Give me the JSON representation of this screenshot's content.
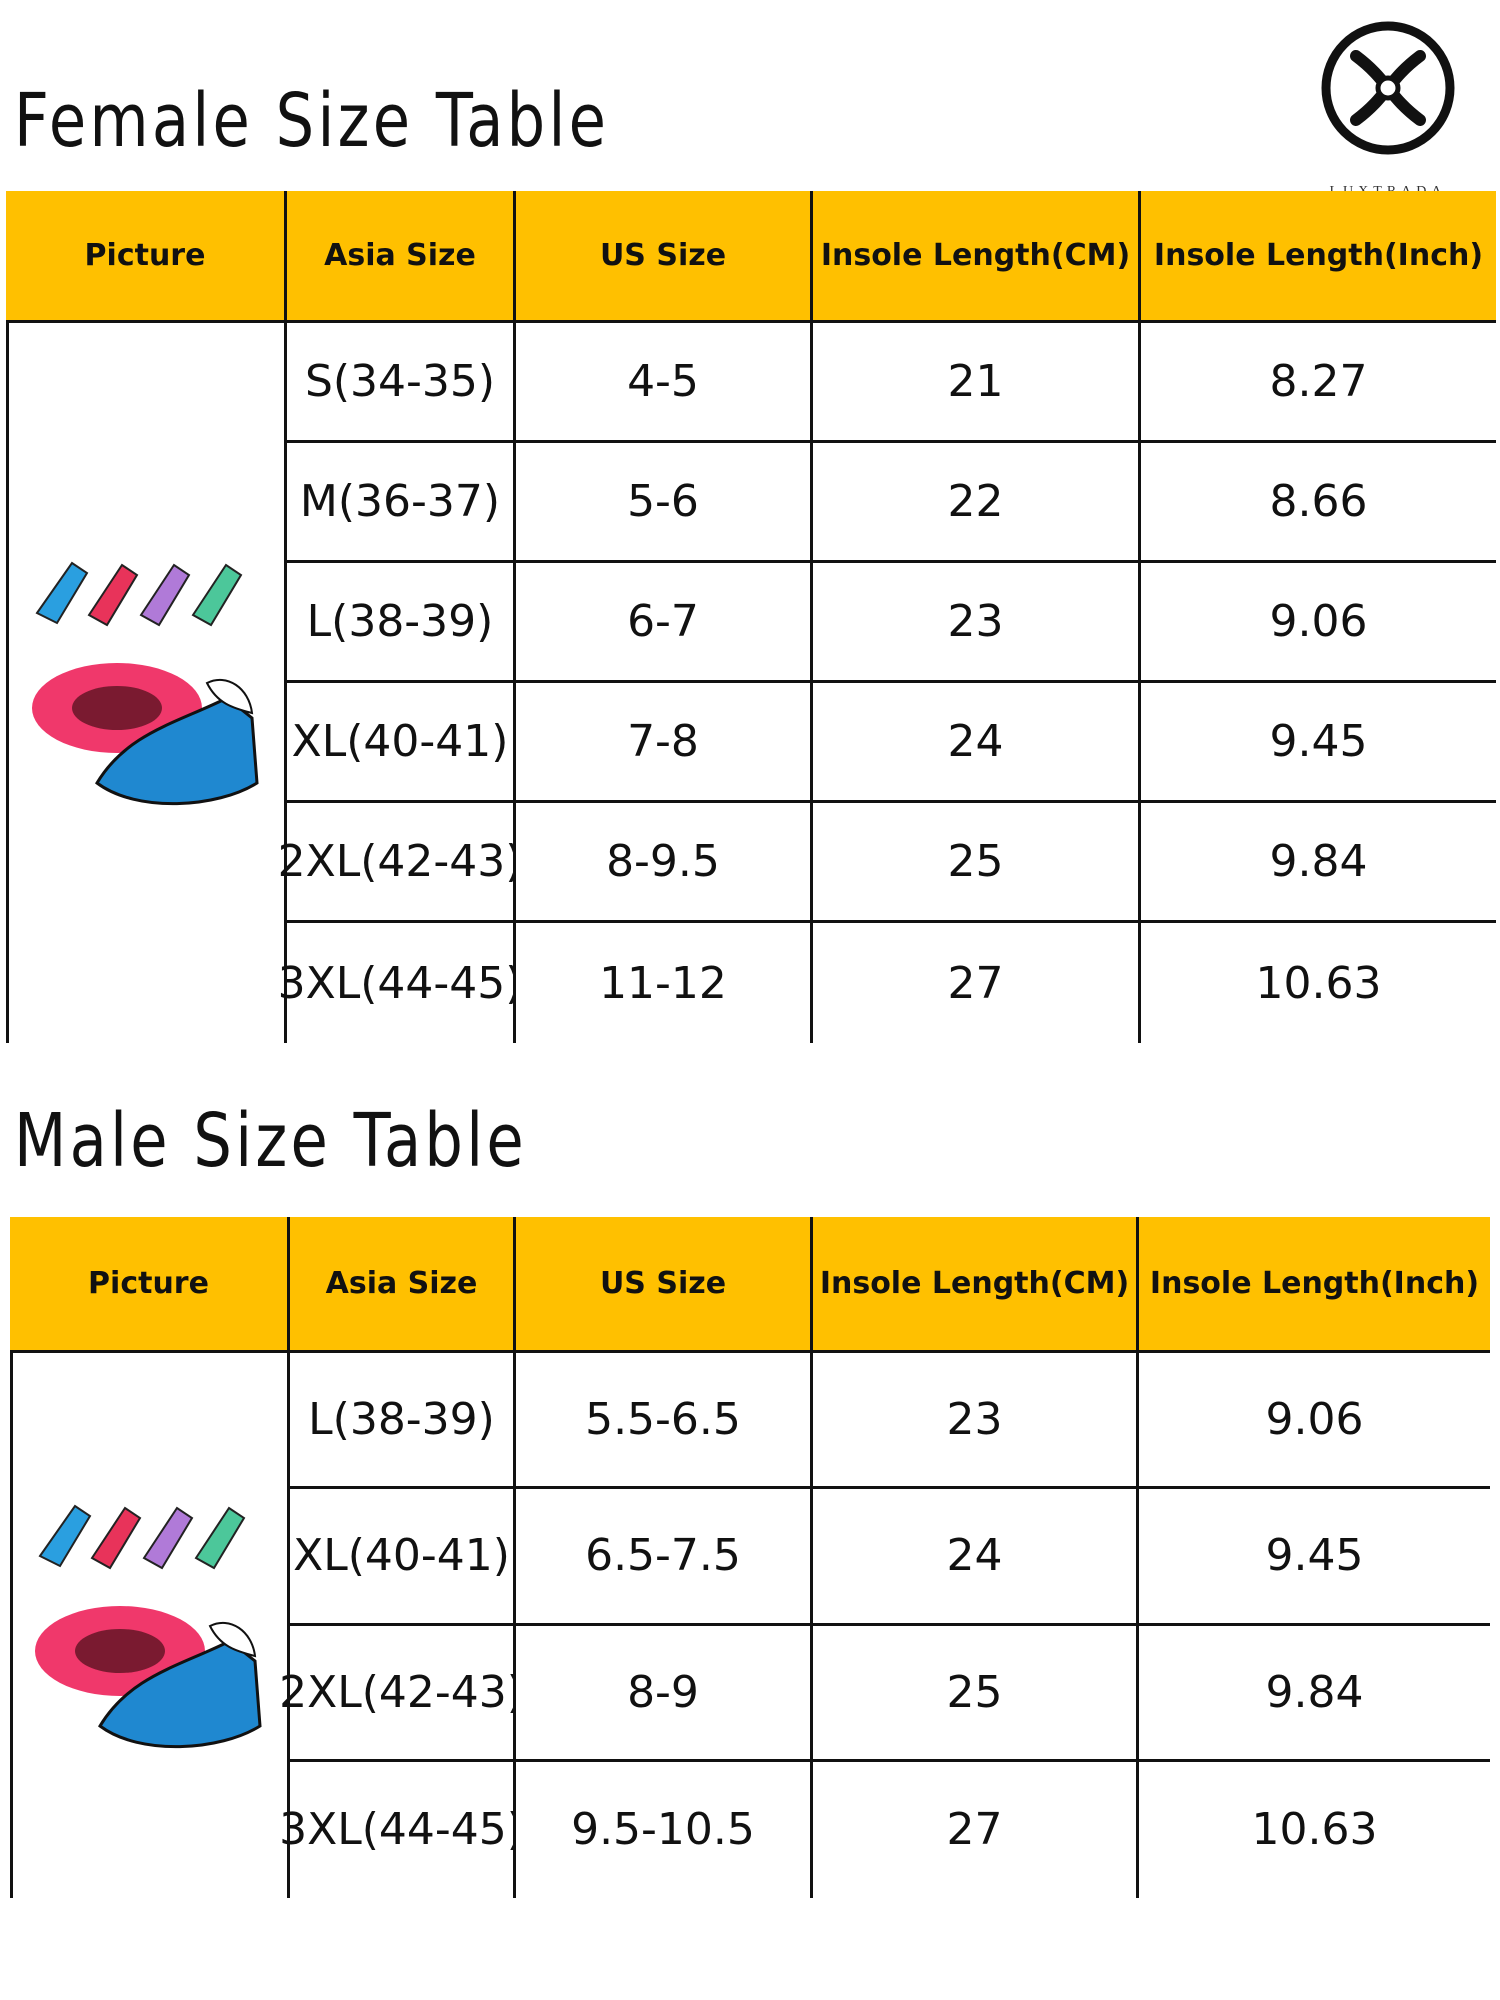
{
  "brand": "LUXTRADA",
  "tables": [
    {
      "title": "Female Size Table",
      "header": [
        "Picture",
        "Asia Size",
        "US Size",
        "Insole Length(CM)",
        "Insole Length(Inch)"
      ],
      "rows": [
        [
          "S(34-35)",
          "4-5",
          "21",
          "8.27"
        ],
        [
          "M(36-37)",
          "5-6",
          "22",
          "8.66"
        ],
        [
          "L(38-39)",
          "6-7",
          "23",
          "9.06"
        ],
        [
          "XL(40-41)",
          "7-8",
          "24",
          "9.45"
        ],
        [
          "2XL(42-43)",
          "8-9.5",
          "25",
          "9.84"
        ],
        [
          "3XL(44-45)",
          "11-12",
          "27",
          "10.63"
        ]
      ]
    },
    {
      "title": "Male Size Table",
      "header": [
        "Picture",
        "Asia Size",
        "US Size",
        "Insole Length(CM)",
        "Insole Length(Inch)"
      ],
      "rows": [
        [
          "L(38-39)",
          "5.5-6.5",
          "23",
          "9.06"
        ],
        [
          "XL(40-41)",
          "6.5-7.5",
          "24",
          "9.45"
        ],
        [
          "2XL(42-43)",
          "8-9",
          "25",
          "9.84"
        ],
        [
          "3XL(44-45)",
          "9.5-10.5",
          "27",
          "10.63"
        ]
      ]
    }
  ]
}
